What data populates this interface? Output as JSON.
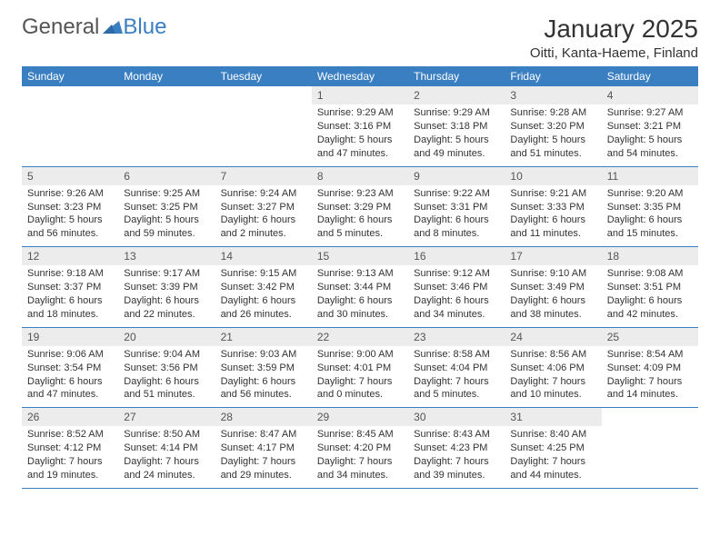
{
  "logo": {
    "text_general": "General",
    "text_blue": "Blue"
  },
  "title": {
    "month_year": "January 2025",
    "location": "Oitti, Kanta-Haeme, Finland"
  },
  "colors": {
    "accent": "#3a7fc2",
    "daynum_bg": "#ececec",
    "text": "#333333",
    "header_text": "#ffffff",
    "page_bg": "#ffffff"
  },
  "day_headers": [
    "Sunday",
    "Monday",
    "Tuesday",
    "Wednesday",
    "Thursday",
    "Friday",
    "Saturday"
  ],
  "weeks": [
    [
      {
        "n": "",
        "sunrise": "",
        "sunset": "",
        "daylight": ""
      },
      {
        "n": "",
        "sunrise": "",
        "sunset": "",
        "daylight": ""
      },
      {
        "n": "",
        "sunrise": "",
        "sunset": "",
        "daylight": ""
      },
      {
        "n": "1",
        "sunrise": "Sunrise: 9:29 AM",
        "sunset": "Sunset: 3:16 PM",
        "daylight": "Daylight: 5 hours and 47 minutes."
      },
      {
        "n": "2",
        "sunrise": "Sunrise: 9:29 AM",
        "sunset": "Sunset: 3:18 PM",
        "daylight": "Daylight: 5 hours and 49 minutes."
      },
      {
        "n": "3",
        "sunrise": "Sunrise: 9:28 AM",
        "sunset": "Sunset: 3:20 PM",
        "daylight": "Daylight: 5 hours and 51 minutes."
      },
      {
        "n": "4",
        "sunrise": "Sunrise: 9:27 AM",
        "sunset": "Sunset: 3:21 PM",
        "daylight": "Daylight: 5 hours and 54 minutes."
      }
    ],
    [
      {
        "n": "5",
        "sunrise": "Sunrise: 9:26 AM",
        "sunset": "Sunset: 3:23 PM",
        "daylight": "Daylight: 5 hours and 56 minutes."
      },
      {
        "n": "6",
        "sunrise": "Sunrise: 9:25 AM",
        "sunset": "Sunset: 3:25 PM",
        "daylight": "Daylight: 5 hours and 59 minutes."
      },
      {
        "n": "7",
        "sunrise": "Sunrise: 9:24 AM",
        "sunset": "Sunset: 3:27 PM",
        "daylight": "Daylight: 6 hours and 2 minutes."
      },
      {
        "n": "8",
        "sunrise": "Sunrise: 9:23 AM",
        "sunset": "Sunset: 3:29 PM",
        "daylight": "Daylight: 6 hours and 5 minutes."
      },
      {
        "n": "9",
        "sunrise": "Sunrise: 9:22 AM",
        "sunset": "Sunset: 3:31 PM",
        "daylight": "Daylight: 6 hours and 8 minutes."
      },
      {
        "n": "10",
        "sunrise": "Sunrise: 9:21 AM",
        "sunset": "Sunset: 3:33 PM",
        "daylight": "Daylight: 6 hours and 11 minutes."
      },
      {
        "n": "11",
        "sunrise": "Sunrise: 9:20 AM",
        "sunset": "Sunset: 3:35 PM",
        "daylight": "Daylight: 6 hours and 15 minutes."
      }
    ],
    [
      {
        "n": "12",
        "sunrise": "Sunrise: 9:18 AM",
        "sunset": "Sunset: 3:37 PM",
        "daylight": "Daylight: 6 hours and 18 minutes."
      },
      {
        "n": "13",
        "sunrise": "Sunrise: 9:17 AM",
        "sunset": "Sunset: 3:39 PM",
        "daylight": "Daylight: 6 hours and 22 minutes."
      },
      {
        "n": "14",
        "sunrise": "Sunrise: 9:15 AM",
        "sunset": "Sunset: 3:42 PM",
        "daylight": "Daylight: 6 hours and 26 minutes."
      },
      {
        "n": "15",
        "sunrise": "Sunrise: 9:13 AM",
        "sunset": "Sunset: 3:44 PM",
        "daylight": "Daylight: 6 hours and 30 minutes."
      },
      {
        "n": "16",
        "sunrise": "Sunrise: 9:12 AM",
        "sunset": "Sunset: 3:46 PM",
        "daylight": "Daylight: 6 hours and 34 minutes."
      },
      {
        "n": "17",
        "sunrise": "Sunrise: 9:10 AM",
        "sunset": "Sunset: 3:49 PM",
        "daylight": "Daylight: 6 hours and 38 minutes."
      },
      {
        "n": "18",
        "sunrise": "Sunrise: 9:08 AM",
        "sunset": "Sunset: 3:51 PM",
        "daylight": "Daylight: 6 hours and 42 minutes."
      }
    ],
    [
      {
        "n": "19",
        "sunrise": "Sunrise: 9:06 AM",
        "sunset": "Sunset: 3:54 PM",
        "daylight": "Daylight: 6 hours and 47 minutes."
      },
      {
        "n": "20",
        "sunrise": "Sunrise: 9:04 AM",
        "sunset": "Sunset: 3:56 PM",
        "daylight": "Daylight: 6 hours and 51 minutes."
      },
      {
        "n": "21",
        "sunrise": "Sunrise: 9:03 AM",
        "sunset": "Sunset: 3:59 PM",
        "daylight": "Daylight: 6 hours and 56 minutes."
      },
      {
        "n": "22",
        "sunrise": "Sunrise: 9:00 AM",
        "sunset": "Sunset: 4:01 PM",
        "daylight": "Daylight: 7 hours and 0 minutes."
      },
      {
        "n": "23",
        "sunrise": "Sunrise: 8:58 AM",
        "sunset": "Sunset: 4:04 PM",
        "daylight": "Daylight: 7 hours and 5 minutes."
      },
      {
        "n": "24",
        "sunrise": "Sunrise: 8:56 AM",
        "sunset": "Sunset: 4:06 PM",
        "daylight": "Daylight: 7 hours and 10 minutes."
      },
      {
        "n": "25",
        "sunrise": "Sunrise: 8:54 AM",
        "sunset": "Sunset: 4:09 PM",
        "daylight": "Daylight: 7 hours and 14 minutes."
      }
    ],
    [
      {
        "n": "26",
        "sunrise": "Sunrise: 8:52 AM",
        "sunset": "Sunset: 4:12 PM",
        "daylight": "Daylight: 7 hours and 19 minutes."
      },
      {
        "n": "27",
        "sunrise": "Sunrise: 8:50 AM",
        "sunset": "Sunset: 4:14 PM",
        "daylight": "Daylight: 7 hours and 24 minutes."
      },
      {
        "n": "28",
        "sunrise": "Sunrise: 8:47 AM",
        "sunset": "Sunset: 4:17 PM",
        "daylight": "Daylight: 7 hours and 29 minutes."
      },
      {
        "n": "29",
        "sunrise": "Sunrise: 8:45 AM",
        "sunset": "Sunset: 4:20 PM",
        "daylight": "Daylight: 7 hours and 34 minutes."
      },
      {
        "n": "30",
        "sunrise": "Sunrise: 8:43 AM",
        "sunset": "Sunset: 4:23 PM",
        "daylight": "Daylight: 7 hours and 39 minutes."
      },
      {
        "n": "31",
        "sunrise": "Sunrise: 8:40 AM",
        "sunset": "Sunset: 4:25 PM",
        "daylight": "Daylight: 7 hours and 44 minutes."
      },
      {
        "n": "",
        "sunrise": "",
        "sunset": "",
        "daylight": ""
      }
    ]
  ]
}
